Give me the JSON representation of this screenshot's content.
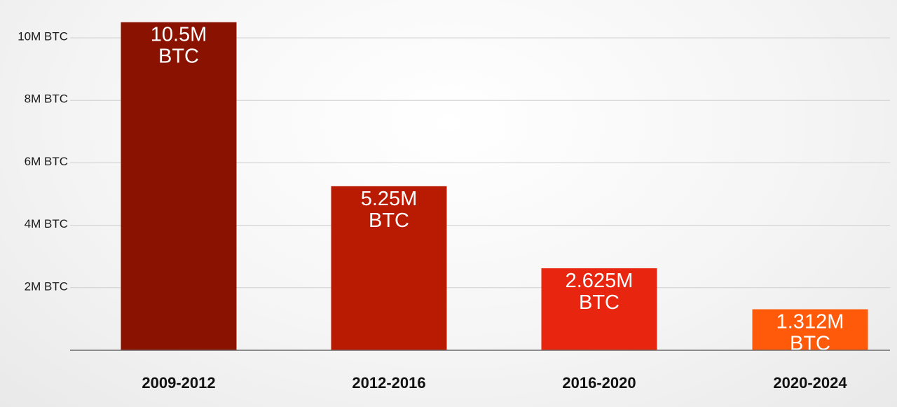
{
  "chart_data": {
    "type": "bar",
    "categories": [
      "2009-2012",
      "2012-2016",
      "2016-2020",
      "2020-2024"
    ],
    "values": [
      10500000,
      5250000,
      2625000,
      1312000
    ],
    "data_labels": [
      [
        "10.5M",
        "BTC"
      ],
      [
        "5.25M",
        "BTC"
      ],
      [
        "2.625M",
        "BTC"
      ],
      [
        "1.312M",
        "BTC"
      ]
    ],
    "y_ticks": [
      {
        "value": 2000000,
        "label": "2M BTC"
      },
      {
        "value": 4000000,
        "label": "4M BTC"
      },
      {
        "value": 6000000,
        "label": "6M BTC"
      },
      {
        "value": 8000000,
        "label": "8M BTC"
      },
      {
        "value": 10000000,
        "label": "10M BTC"
      }
    ],
    "ylim": [
      0,
      11000000
    ],
    "grid": true,
    "legend": "none",
    "bar_colors": [
      "#8a1200",
      "#b81a02",
      "#e8260f",
      "#ff5a0a"
    ]
  }
}
